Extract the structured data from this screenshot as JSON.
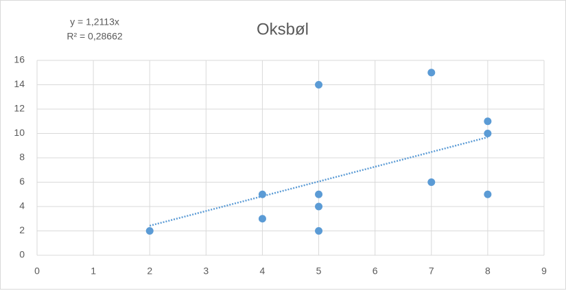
{
  "chart_data": {
    "type": "scatter",
    "title": "Oksbøl",
    "annotations": [
      "y = 1,2113x",
      "R² = 0,28662"
    ],
    "x": [
      2,
      4,
      4,
      5,
      5,
      5,
      5,
      7,
      7,
      8,
      8,
      8
    ],
    "values": [
      2,
      5,
      3,
      14,
      5,
      4,
      2,
      15,
      6,
      11,
      10,
      5
    ],
    "color": "#5b9bd5",
    "xlim": [
      0,
      9
    ],
    "xticks": [
      0,
      1,
      2,
      3,
      4,
      5,
      6,
      7,
      8,
      9
    ],
    "ylim": [
      0,
      16
    ],
    "yticks": [
      0,
      2,
      4,
      6,
      8,
      10,
      12,
      14,
      16
    ],
    "grid": true,
    "trendline": true
  }
}
